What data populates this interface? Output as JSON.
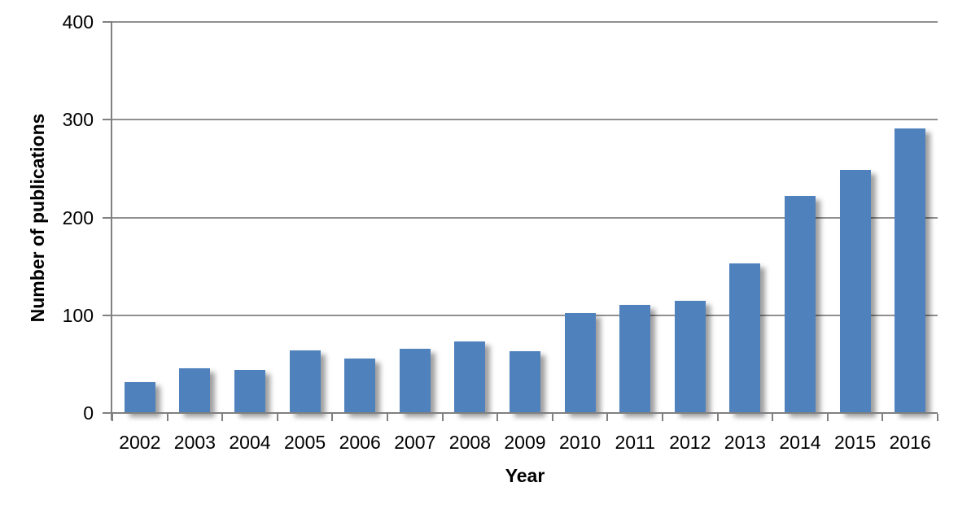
{
  "chart_data": {
    "type": "bar",
    "title": "",
    "xlabel": "Year",
    "ylabel": "Number of publications",
    "categories": [
      "2002",
      "2003",
      "2004",
      "2005",
      "2006",
      "2007",
      "2008",
      "2009",
      "2010",
      "2011",
      "2012",
      "2013",
      "2014",
      "2015",
      "2016"
    ],
    "values": [
      32,
      46,
      44,
      64,
      56,
      66,
      73,
      63,
      102,
      111,
      115,
      153,
      222,
      249,
      291
    ],
    "ylim": [
      0,
      400
    ],
    "yticks": [
      0,
      100,
      200,
      300,
      400
    ],
    "grid": true,
    "legend": "none",
    "bar_color": "#4F81BD",
    "gridline_color": "#909090",
    "axis_color": "#808080",
    "text_color": "#000000"
  }
}
